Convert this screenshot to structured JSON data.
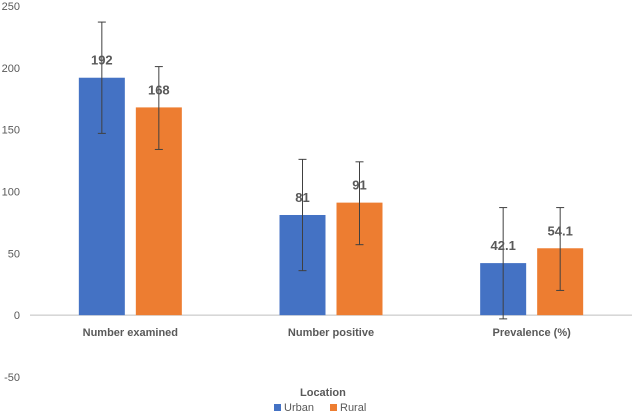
{
  "chart_data": {
    "type": "bar",
    "title": "",
    "xlabel": "",
    "ylabel": "",
    "categories": [
      "Number examined",
      "Number positive",
      "Prevalence (%)"
    ],
    "series": [
      {
        "name": "Urban",
        "color": "#4472C4",
        "values": [
          192,
          81,
          42.1
        ],
        "value_labels": [
          "192",
          "81",
          "42.1"
        ],
        "error_low": [
          147,
          36,
          -3
        ],
        "error_high": [
          237,
          126,
          87
        ]
      },
      {
        "name": "Rural",
        "color": "#ED7D31",
        "values": [
          168,
          91,
          54.1
        ],
        "value_labels": [
          "168",
          "91",
          "54.1"
        ],
        "error_low": [
          134,
          57,
          20
        ],
        "error_high": [
          201,
          124,
          87
        ]
      }
    ],
    "ylim": [
      -50,
      250
    ],
    "yticks": [
      "-50",
      "0",
      "50",
      "100",
      "150",
      "200",
      "250"
    ],
    "grid": false,
    "legend": {
      "title": "Location",
      "placement": "bottom-left"
    }
  }
}
